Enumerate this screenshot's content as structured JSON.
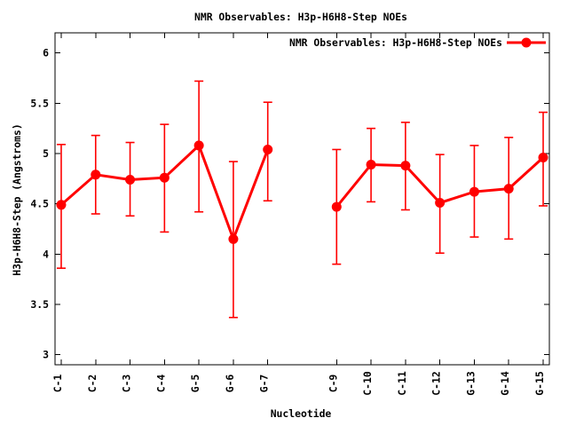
{
  "chart_data": {
    "type": "line",
    "title": "NMR Observables: H3p-H6H8-Step NOEs",
    "x_label": "Nucleotide",
    "y_label": "H3p-H6H8-Step (Angstroms)",
    "legend": {
      "label": "NMR Observables: H3p-H6H8-Step NOEs",
      "position": "top-right-inside",
      "marker": "red-line-with-filled-circle"
    },
    "series_color": "#ff0000",
    "axis_color": "#000000",
    "background_color": "#ffffff",
    "grid": false,
    "error_bars": true,
    "marker": "filled-circle",
    "y_ticks": [
      3,
      3.5,
      4,
      4.5,
      5,
      5.5,
      6
    ],
    "y_tick_labels": [
      "3",
      "3.5",
      "4",
      "4.5",
      "5",
      "5.5",
      "6"
    ],
    "y_range": [
      2.9,
      6.2
    ],
    "x_range": [
      0.82,
      15.18
    ],
    "categories": [
      "C-1",
      "C-2",
      "C-3",
      "C-4",
      "G-5",
      "G-6",
      "G-7",
      "C-9",
      "C-10",
      "C-11",
      "C-12",
      "G-13",
      "G-14",
      "G-15"
    ],
    "note": "position 8 is absent, producing a break in the line between G-7 and C-9",
    "points": [
      {
        "label": "C-1",
        "x": 1,
        "y": 4.49,
        "ylow": 3.86,
        "yhigh": 5.09
      },
      {
        "label": "C-2",
        "x": 2,
        "y": 4.79,
        "ylow": 4.4,
        "yhigh": 5.18
      },
      {
        "label": "C-3",
        "x": 3,
        "y": 4.74,
        "ylow": 4.38,
        "yhigh": 5.11
      },
      {
        "label": "C-4",
        "x": 4,
        "y": 4.76,
        "ylow": 4.22,
        "yhigh": 5.29
      },
      {
        "label": "G-5",
        "x": 5,
        "y": 5.08,
        "ylow": 4.42,
        "yhigh": 5.72
      },
      {
        "label": "G-6",
        "x": 6,
        "y": 4.15,
        "ylow": 3.37,
        "yhigh": 4.92
      },
      {
        "label": "G-7",
        "x": 7,
        "y": 5.04,
        "ylow": 4.53,
        "yhigh": 5.51
      },
      {
        "label": "C-9",
        "x": 9,
        "y": 4.47,
        "ylow": 3.9,
        "yhigh": 5.04
      },
      {
        "label": "C-10",
        "x": 10,
        "y": 4.89,
        "ylow": 4.52,
        "yhigh": 5.25
      },
      {
        "label": "C-11",
        "x": 11,
        "y": 4.88,
        "ylow": 4.44,
        "yhigh": 5.31
      },
      {
        "label": "C-12",
        "x": 12,
        "y": 4.51,
        "ylow": 4.01,
        "yhigh": 4.99
      },
      {
        "label": "G-13",
        "x": 13,
        "y": 4.62,
        "ylow": 4.17,
        "yhigh": 5.08
      },
      {
        "label": "G-14",
        "x": 14,
        "y": 4.65,
        "ylow": 4.15,
        "yhigh": 5.16
      },
      {
        "label": "G-15",
        "x": 15,
        "y": 4.96,
        "ylow": 4.48,
        "yhigh": 5.41
      }
    ]
  }
}
